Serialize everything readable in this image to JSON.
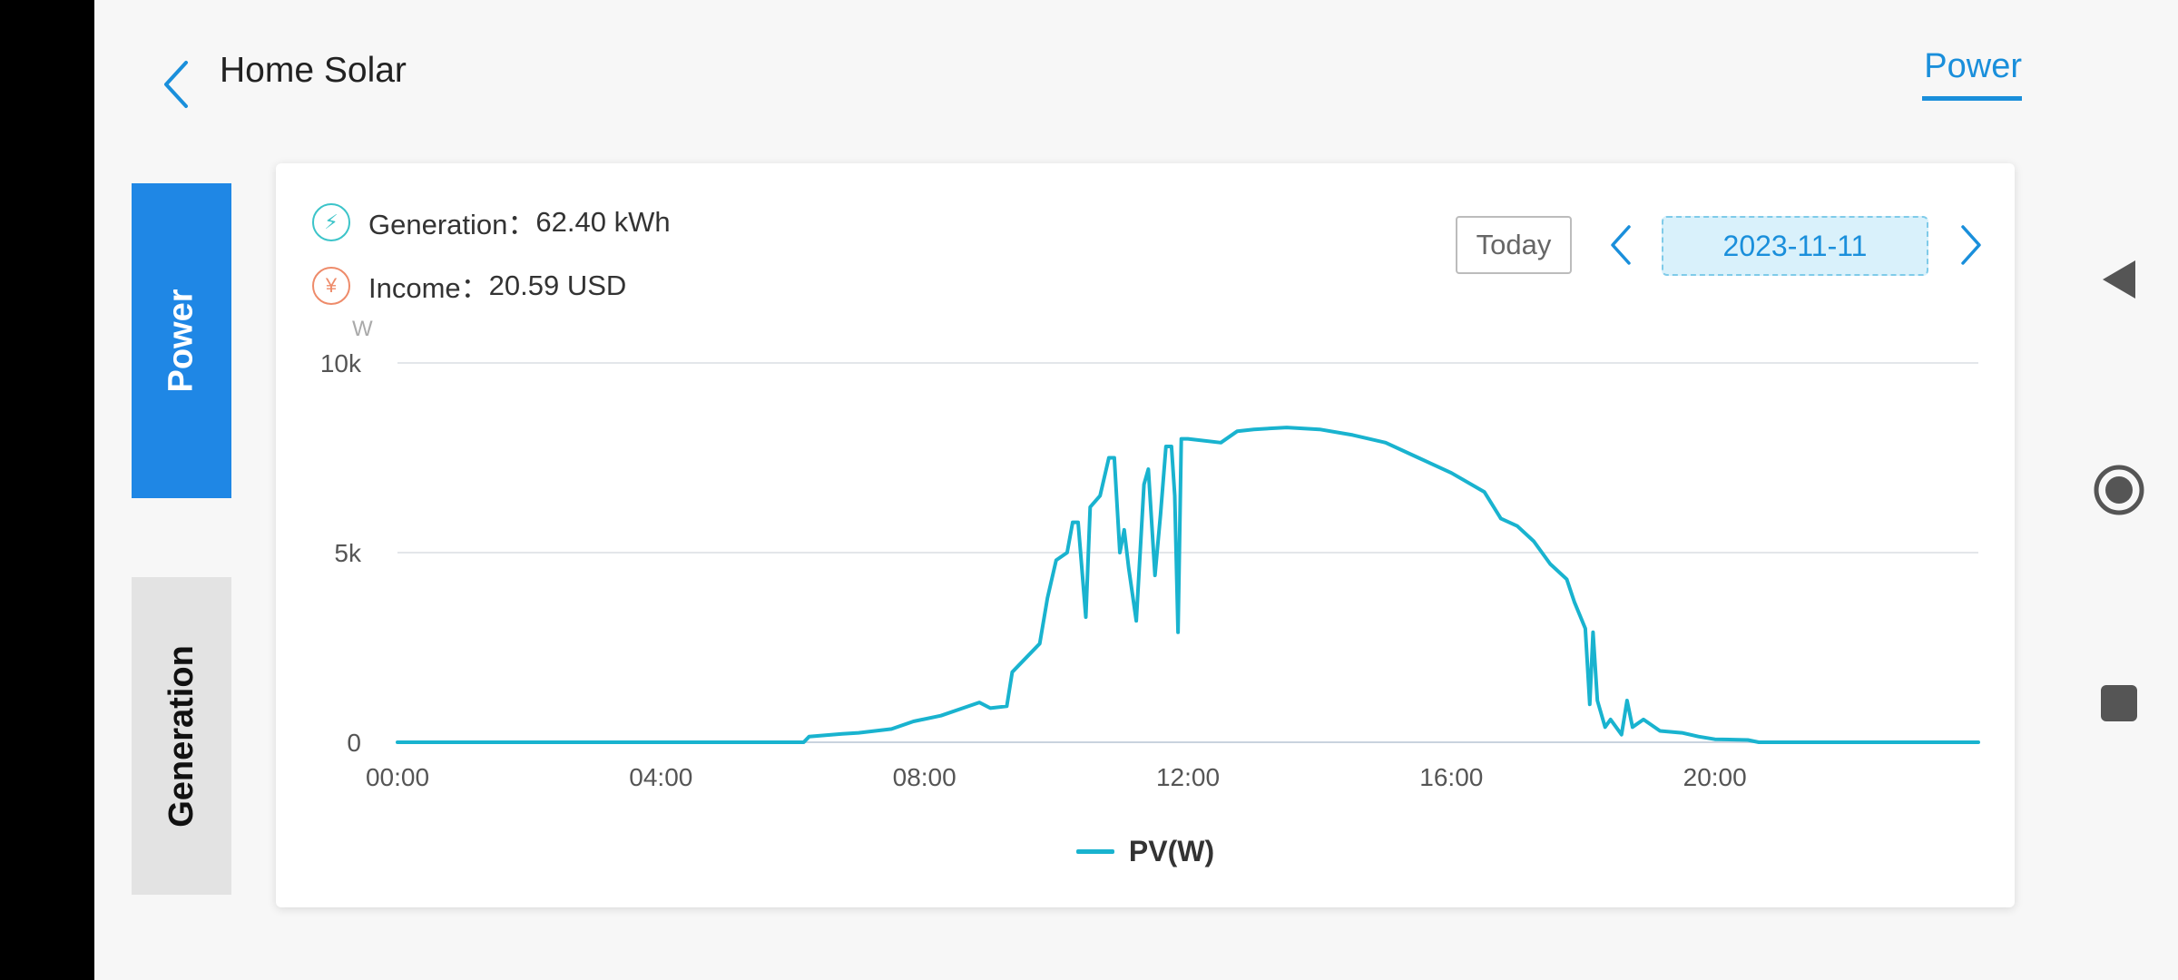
{
  "app": {
    "title": "Home Solar",
    "top_tab": "Power"
  },
  "sidebar": {
    "tabs": [
      {
        "label": "Power",
        "active": true
      },
      {
        "label": "Generation",
        "active": false
      }
    ]
  },
  "summary": {
    "generation_label": "Generation：",
    "generation_value": "62.40 kWh",
    "income_label": "Income：",
    "income_value": "20.59 USD",
    "generation_icon": "lightning-bolt-icon",
    "income_icon": "yen-icon"
  },
  "date_nav": {
    "today_label": "Today",
    "date": "2023-11-11"
  },
  "colors": {
    "accent": "#1a8fdb",
    "active_tab": "#1f87e5",
    "series": "#19b3cf",
    "date_bg": "#d9f1fb"
  },
  "chart_data": {
    "type": "line",
    "unit_label": "W",
    "ylim": [
      0,
      10000
    ],
    "y_ticks": [
      {
        "v": 0,
        "label": "0"
      },
      {
        "v": 5000,
        "label": "5k"
      },
      {
        "v": 10000,
        "label": "10k"
      }
    ],
    "xlim": [
      "00:00",
      "24:00"
    ],
    "x_ticks": [
      "00:00",
      "04:00",
      "08:00",
      "12:00",
      "16:00",
      "20:00"
    ],
    "grid": true,
    "legend": "bottom-center",
    "series": [
      {
        "name": "PV(W)",
        "points": [
          [
            "00:00",
            0
          ],
          [
            "06:10",
            0
          ],
          [
            "06:15",
            150
          ],
          [
            "06:45",
            220
          ],
          [
            "07:00",
            250
          ],
          [
            "07:30",
            350
          ],
          [
            "07:50",
            550
          ],
          [
            "08:15",
            700
          ],
          [
            "08:35",
            900
          ],
          [
            "08:50",
            1050
          ],
          [
            "09:00",
            900
          ],
          [
            "09:15",
            950
          ],
          [
            "09:20",
            1850
          ],
          [
            "09:45",
            2600
          ],
          [
            "09:52",
            3800
          ],
          [
            "10:00",
            4800
          ],
          [
            "10:10",
            5000
          ],
          [
            "10:15",
            5800
          ],
          [
            "10:20",
            5800
          ],
          [
            "10:27",
            3300
          ],
          [
            "10:31",
            6200
          ],
          [
            "10:40",
            6500
          ],
          [
            "10:48",
            7500
          ],
          [
            "10:53",
            7500
          ],
          [
            "10:58",
            5000
          ],
          [
            "11:02",
            5600
          ],
          [
            "11:06",
            4600
          ],
          [
            "11:13",
            3200
          ],
          [
            "11:20",
            6800
          ],
          [
            "11:24",
            7200
          ],
          [
            "11:30",
            4400
          ],
          [
            "11:35",
            6000
          ],
          [
            "11:40",
            7800
          ],
          [
            "11:45",
            7800
          ],
          [
            "11:48",
            6500
          ],
          [
            "11:51",
            2900
          ],
          [
            "11:54",
            8000
          ],
          [
            "12:00",
            8000
          ],
          [
            "12:30",
            7900
          ],
          [
            "12:45",
            8200
          ],
          [
            "13:00",
            8250
          ],
          [
            "13:30",
            8300
          ],
          [
            "14:00",
            8250
          ],
          [
            "14:30",
            8100
          ],
          [
            "15:00",
            7900
          ],
          [
            "15:30",
            7500
          ],
          [
            "16:00",
            7100
          ],
          [
            "16:30",
            6600
          ],
          [
            "16:45",
            5900
          ],
          [
            "17:00",
            5700
          ],
          [
            "17:15",
            5300
          ],
          [
            "17:30",
            4700
          ],
          [
            "17:45",
            4300
          ],
          [
            "17:52",
            3700
          ],
          [
            "18:02",
            3000
          ],
          [
            "18:06",
            1000
          ],
          [
            "18:09",
            2900
          ],
          [
            "18:13",
            1100
          ],
          [
            "18:20",
            400
          ],
          [
            "18:25",
            600
          ],
          [
            "18:35",
            200
          ],
          [
            "18:40",
            1100
          ],
          [
            "18:45",
            400
          ],
          [
            "18:55",
            600
          ],
          [
            "19:10",
            300
          ],
          [
            "19:30",
            250
          ],
          [
            "19:45",
            150
          ],
          [
            "20:00",
            80
          ],
          [
            "20:30",
            60
          ],
          [
            "20:40",
            0
          ],
          [
            "24:00",
            0
          ]
        ]
      }
    ]
  }
}
